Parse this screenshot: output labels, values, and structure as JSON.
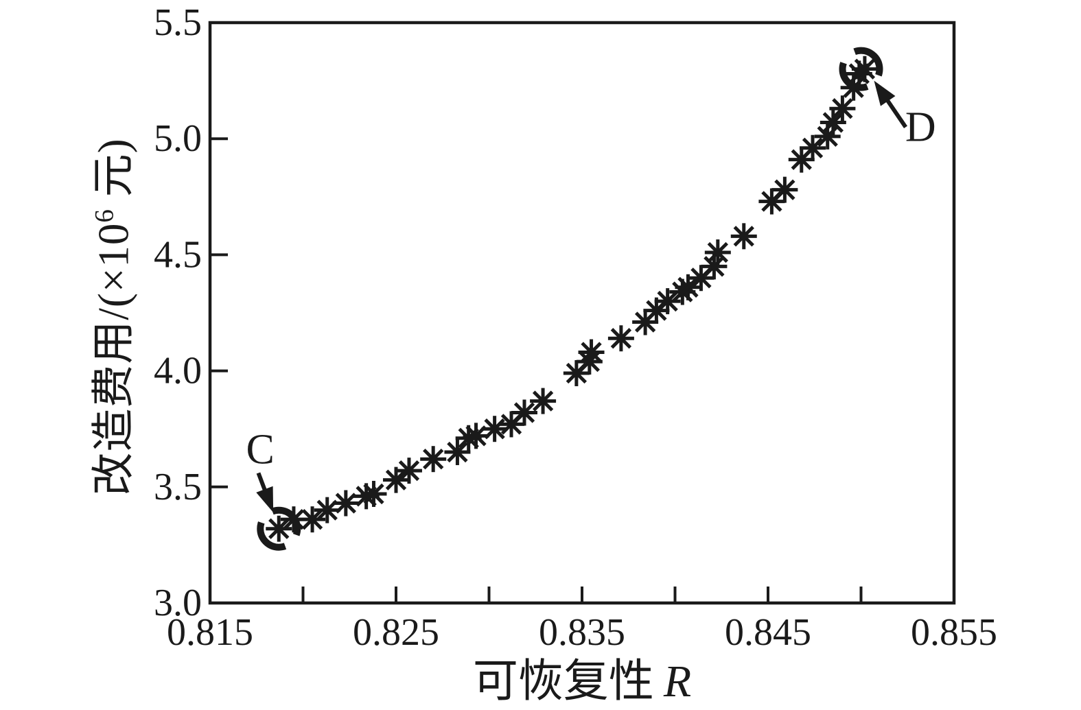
{
  "figure": {
    "background": "#ffffff",
    "ink_color": "#1a1a1a"
  },
  "chart_data": {
    "type": "scatter",
    "title": "",
    "xlabel_cn": "可恢复性",
    "xlabel_var": "R",
    "ylabel_prefix": "改造费用/(×10",
    "ylabel_sup": "6",
    "ylabel_suffix": " 元)",
    "xlim": [
      0.815,
      0.855
    ],
    "ylim": [
      3.0,
      5.5
    ],
    "grid": false,
    "legend": null,
    "marker": "asterisk-8-spoke",
    "x_tick_marks": [
      0.82,
      0.825,
      0.83,
      0.835,
      0.84,
      0.845,
      0.85
    ],
    "y_tick_marks": [
      3.5,
      4.0,
      4.5,
      5.0
    ],
    "x_tick_labels": [
      {
        "value": 0.815,
        "label": "0.815"
      },
      {
        "value": 0.825,
        "label": "0.825"
      },
      {
        "value": 0.835,
        "label": "0.835"
      },
      {
        "value": 0.845,
        "label": "0.845"
      },
      {
        "value": 0.855,
        "label": "0.855"
      }
    ],
    "y_tick_labels": [
      {
        "value": 3.0,
        "label": "3.0"
      },
      {
        "value": 3.5,
        "label": "3.5"
      },
      {
        "value": 4.0,
        "label": "4.0"
      },
      {
        "value": 4.5,
        "label": "4.5"
      },
      {
        "value": 5.0,
        "label": "5.0"
      },
      {
        "value": 5.5,
        "label": "5.5"
      }
    ],
    "points": [
      [
        0.8187,
        3.32
      ],
      [
        0.8195,
        3.36
      ],
      [
        0.8205,
        3.36
      ],
      [
        0.8213,
        3.4
      ],
      [
        0.8223,
        3.43
      ],
      [
        0.8234,
        3.46
      ],
      [
        0.8238,
        3.47
      ],
      [
        0.825,
        3.53
      ],
      [
        0.8257,
        3.57
      ],
      [
        0.827,
        3.62
      ],
      [
        0.8283,
        3.65
      ],
      [
        0.8289,
        3.71
      ],
      [
        0.8293,
        3.72
      ],
      [
        0.8303,
        3.75
      ],
      [
        0.8312,
        3.77
      ],
      [
        0.8319,
        3.82
      ],
      [
        0.8329,
        3.87
      ],
      [
        0.8347,
        3.99
      ],
      [
        0.8354,
        4.04
      ],
      [
        0.8355,
        4.08
      ],
      [
        0.8371,
        4.14
      ],
      [
        0.8384,
        4.21
      ],
      [
        0.839,
        4.26
      ],
      [
        0.8396,
        4.3
      ],
      [
        0.8404,
        4.34
      ],
      [
        0.8407,
        4.36
      ],
      [
        0.8414,
        4.4
      ],
      [
        0.8421,
        4.45
      ],
      [
        0.8423,
        4.51
      ],
      [
        0.8437,
        4.58
      ],
      [
        0.8452,
        4.73
      ],
      [
        0.8459,
        4.78
      ],
      [
        0.8468,
        4.91
      ],
      [
        0.8474,
        4.96
      ],
      [
        0.8482,
        5.01
      ],
      [
        0.8485,
        5.07
      ],
      [
        0.849,
        5.13
      ],
      [
        0.8496,
        5.22
      ],
      [
        0.8499,
        5.28
      ],
      [
        0.8502,
        5.3
      ]
    ],
    "highlighted_points": [
      [
        0.8187,
        3.32
      ],
      [
        0.85,
        5.3
      ]
    ],
    "annotations": [
      {
        "label": "C",
        "label_pos": [
          0.8177,
          3.66
        ],
        "arrow_from": [
          0.8176,
          3.56
        ],
        "arrow_to": [
          0.8184,
          3.39
        ]
      },
      {
        "label": "D",
        "label_pos": [
          0.8532,
          5.05
        ],
        "arrow_from": [
          0.8524,
          5.05
        ],
        "arrow_to": [
          0.8507,
          5.25
        ]
      }
    ]
  }
}
